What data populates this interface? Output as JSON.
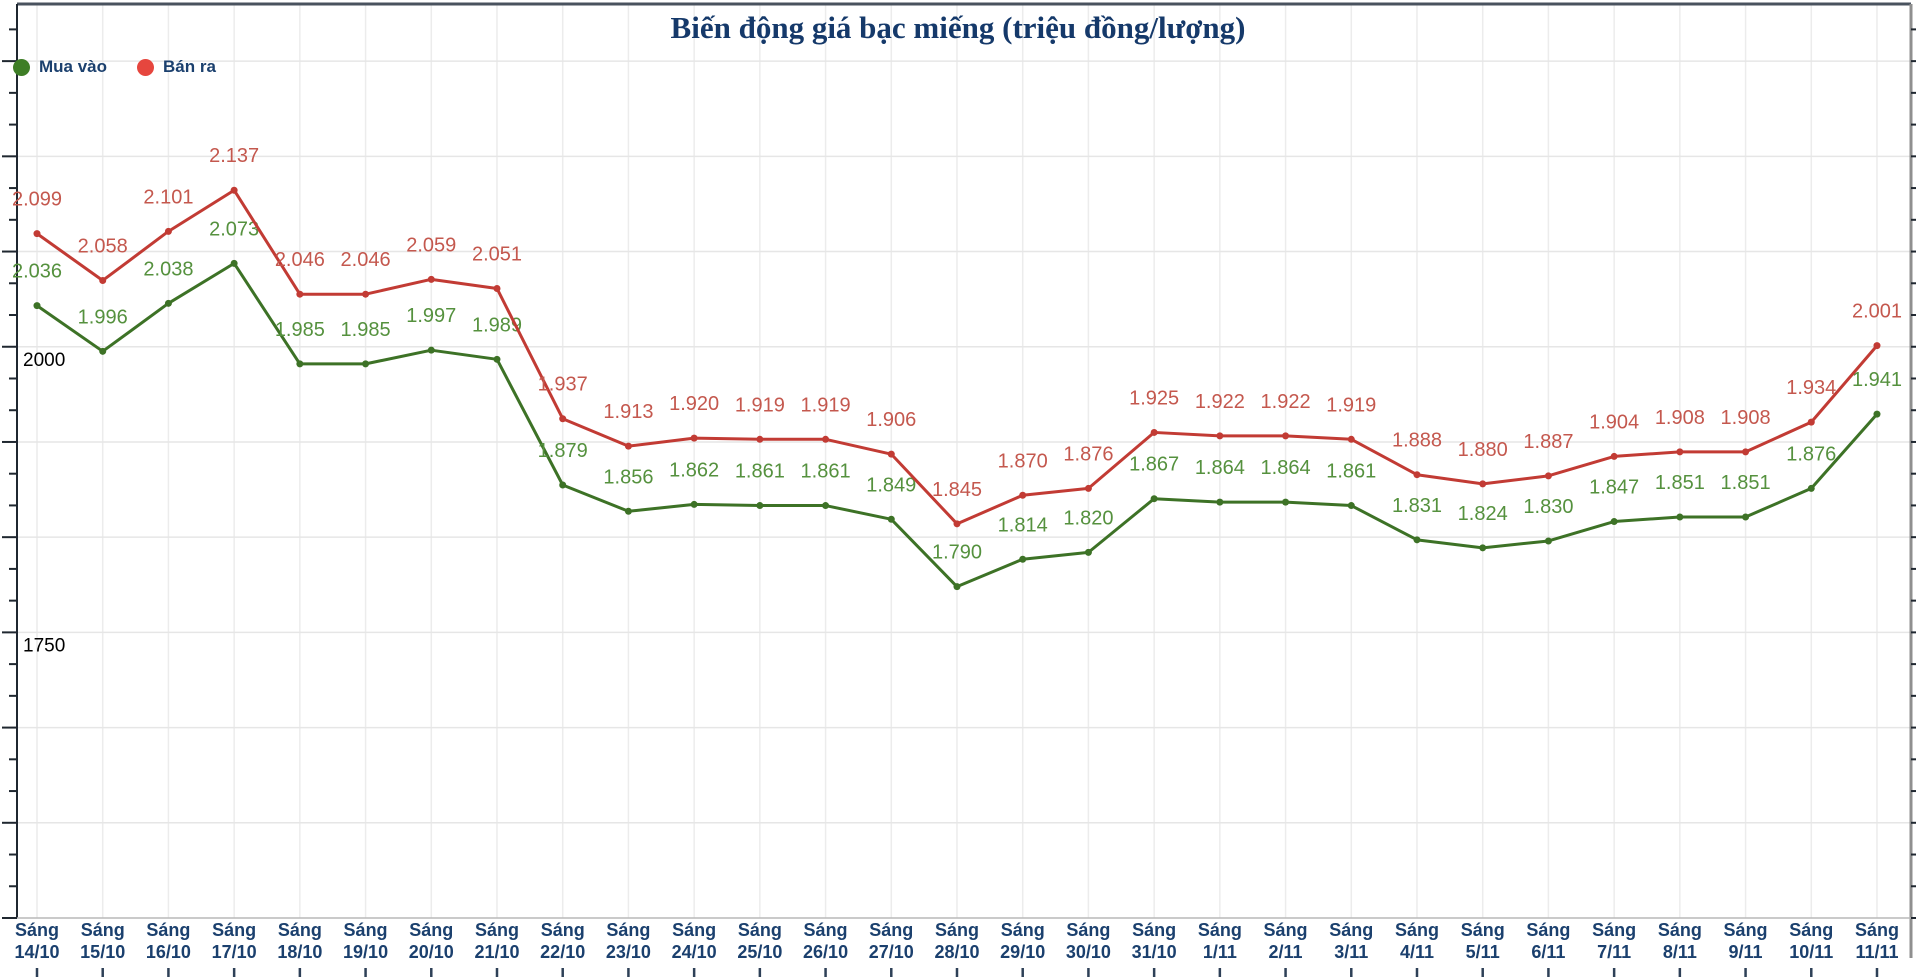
{
  "title": "Biến động giá bạc miếng (triệu đồng/lượng)",
  "legend": [
    {
      "label": "Mua vào",
      "color": "#3e7e26"
    },
    {
      "label": "Bán ra",
      "color": "#e6463e"
    }
  ],
  "y_axis": {
    "tick_labels": [
      "2000",
      "1750"
    ],
    "tick_values": [
      2000,
      1750
    ],
    "label_color": "#000000"
  },
  "colors": {
    "grid": "#e6e6e6",
    "grid_vertical": "#ececec",
    "axis_dark": "#1f2730",
    "axis_light": "#b9b9b9",
    "right_border": "#8f8f8f",
    "bottom_tick": "#2e4057",
    "navy_text": "#1b406e"
  },
  "chart_data": {
    "type": "line",
    "title": "Biến động giá bạc miếng (triệu đồng/lượng)",
    "categories": [
      "Sáng 14/10",
      "Sáng 15/10",
      "Sáng 16/10",
      "Sáng 17/10",
      "Sáng 18/10",
      "Sáng 19/10",
      "Sáng 20/10",
      "Sáng 21/10",
      "Sáng 22/10",
      "Sáng 23/10",
      "Sáng 24/10",
      "Sáng 25/10",
      "Sáng 26/10",
      "Sáng 27/10",
      "Sáng 28/10",
      "Sáng 29/10",
      "Sáng 30/10",
      "Sáng 31/10",
      "Sáng 1/11",
      "Sáng 2/11",
      "Sáng 3/11",
      "Sáng 4/11",
      "Sáng 5/11",
      "Sáng 6/11",
      "Sáng 7/11",
      "Sáng 8/11",
      "Sáng 9/11",
      "Sáng 10/11",
      "Sáng 11/11"
    ],
    "series": [
      {
        "name": "Mua vào",
        "color": "#3d7226",
        "label_color": "#55913e",
        "values": [
          2036,
          1996,
          2038,
          2073,
          1985,
          1985,
          1997,
          1989,
          1879,
          1856,
          1862,
          1861,
          1861,
          1849,
          1790,
          1814,
          1820,
          1867,
          1864,
          1864,
          1861,
          1831,
          1824,
          1830,
          1847,
          1851,
          1851,
          1876,
          1941
        ]
      },
      {
        "name": "Bán ra",
        "color": "#c23b34",
        "label_color": "#c4584e",
        "values": [
          2099,
          2058,
          2101,
          2137,
          2046,
          2046,
          2059,
          2051,
          1937,
          1913,
          1920,
          1919,
          1919,
          1906,
          1845,
          1870,
          1876,
          1925,
          1922,
          1922,
          1919,
          1888,
          1880,
          1887,
          1904,
          1908,
          1908,
          1934,
          2001
        ]
      }
    ],
    "ylim": [
      1500,
      2300
    ],
    "grid": true,
    "legend_position": "top-left",
    "value_format": "thousands-dot",
    "data_labels": true
  }
}
